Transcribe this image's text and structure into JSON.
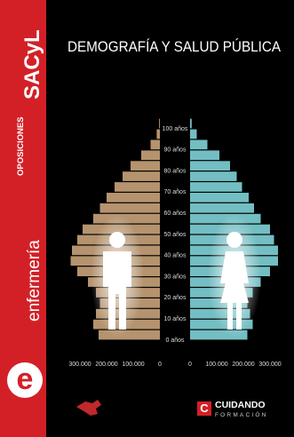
{
  "cover": {
    "series_label": "OPOSICIONES",
    "brand": "SACyL",
    "subject": "enfermería",
    "initial": "e",
    "publisher": "CUIDANDO",
    "publisher_sub": "FORMACIÓN"
  },
  "chart_data": {
    "type": "pyramid",
    "title": "DEMOGRAFÍA Y SALUD PÚBLICA",
    "y": [
      0,
      5,
      10,
      15,
      20,
      25,
      30,
      35,
      40,
      45,
      50,
      55,
      60,
      65,
      70,
      75,
      80,
      85,
      90,
      95,
      100
    ],
    "series": [
      {
        "side": "left",
        "color": "#c9a37a",
        "values": [
          230000,
          250000,
          240000,
          225000,
          240000,
          270000,
          310000,
          335000,
          330000,
          310000,
          290000,
          250000,
          225000,
          200000,
          170000,
          140000,
          110000,
          70000,
          35000,
          12000,
          3000
        ]
      },
      {
        "side": "right",
        "color": "#7fd3d8",
        "values": [
          215000,
          235000,
          225000,
          215000,
          235000,
          265000,
          300000,
          330000,
          330000,
          315000,
          300000,
          265000,
          240000,
          220000,
          195000,
          175000,
          150000,
          110000,
          65000,
          25000,
          6000
        ]
      }
    ],
    "ylim": [
      0,
      100
    ],
    "yticks": [
      {
        "value": 0,
        "label": "0 años"
      },
      {
        "value": 10,
        "label": "10 años"
      },
      {
        "value": 20,
        "label": "20 años"
      },
      {
        "value": 30,
        "label": "30 años"
      },
      {
        "value": 40,
        "label": "40 años"
      },
      {
        "value": 50,
        "label": "50 años"
      },
      {
        "value": 60,
        "label": "60 años"
      },
      {
        "value": 70,
        "label": "70 años"
      },
      {
        "value": 80,
        "label": "80 años"
      },
      {
        "value": 90,
        "label": "90 años"
      },
      {
        "value": 100,
        "label": "100 años"
      }
    ],
    "xticks": [
      0,
      {
        "value": 100000,
        "label": "100.000"
      },
      {
        "value": 200000,
        "label": "200.000"
      },
      {
        "value": 300000,
        "label": "300.000"
      }
    ],
    "grid": false
  }
}
